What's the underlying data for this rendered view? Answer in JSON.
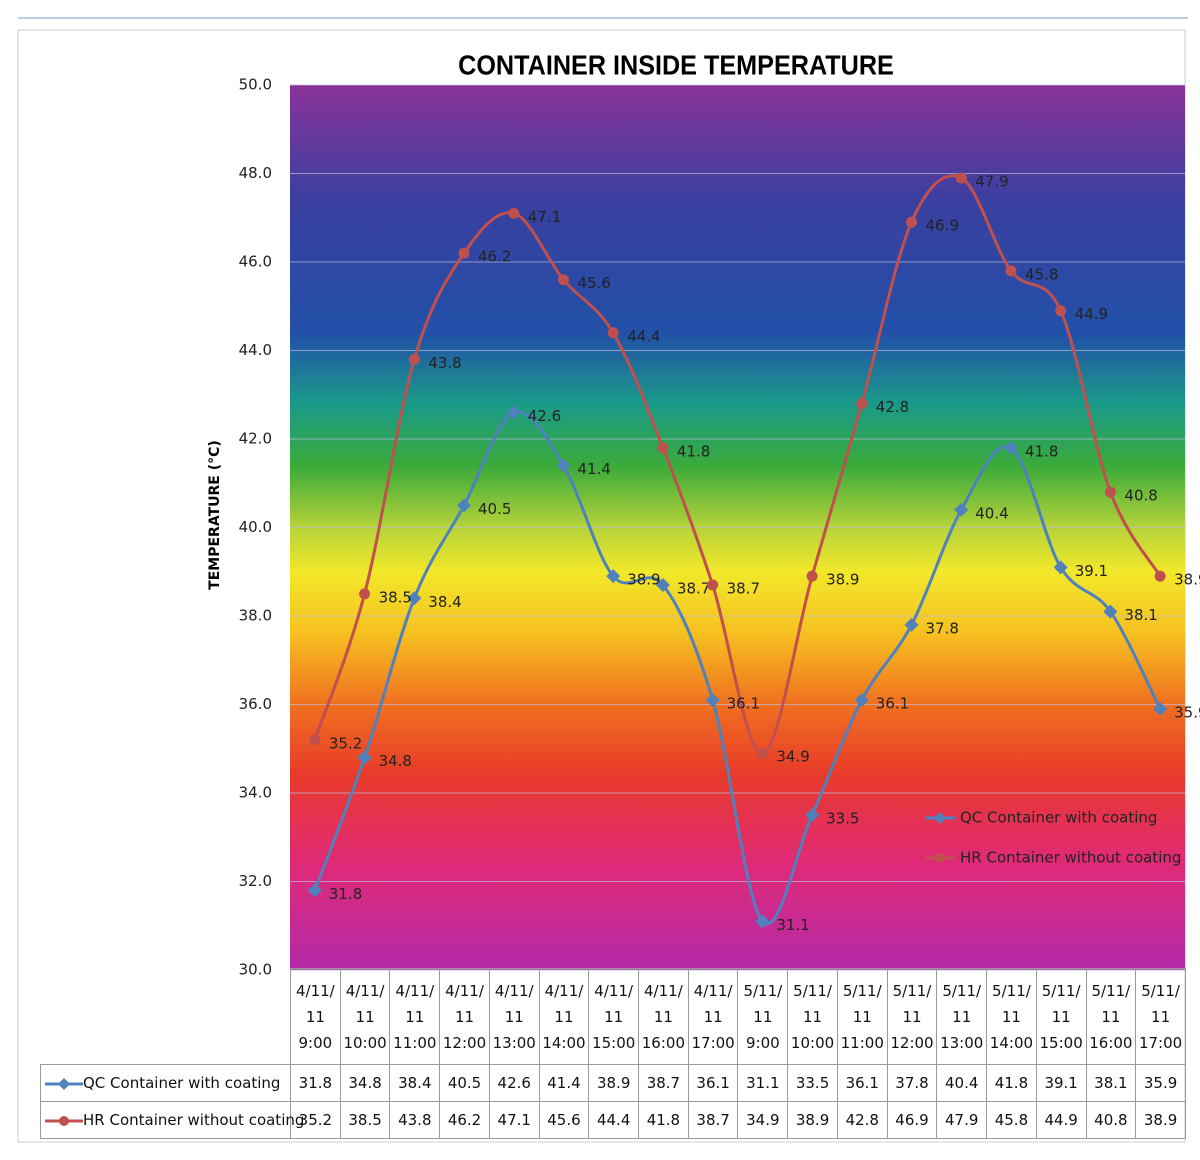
{
  "chart_data": {
    "type": "line",
    "title": "CONTAINER INSIDE TEMPERATURE",
    "y_label": "TEMPERATURE (°C)",
    "categories": [
      "4/11/\n11\n9:00",
      "4/11/\n11\n10:00",
      "4/11/\n11\n11:00",
      "4/11/\n11\n12:00",
      "4/11/\n11\n13:00",
      "4/11/\n11\n14:00",
      "4/11/\n11\n15:00",
      "4/11/\n11\n16:00",
      "4/11/\n11\n17:00",
      "5/11/\n11\n9:00",
      "5/11/\n11\n10:00",
      "5/11/\n11\n11:00",
      "5/11/\n11\n12:00",
      "5/11/\n11\n13:00",
      "5/11/\n11\n14:00",
      "5/11/\n11\n15:00",
      "5/11/\n11\n16:00",
      "5/11/\n11\n17:00"
    ],
    "series": [
      {
        "name": "QC Container with coating",
        "color": "#4f81bd",
        "marker": "diamond",
        "values": [
          31.8,
          34.8,
          38.4,
          40.5,
          42.6,
          41.4,
          38.9,
          38.7,
          36.1,
          31.1,
          33.5,
          36.1,
          37.8,
          40.4,
          41.8,
          39.1,
          38.1,
          35.9
        ]
      },
      {
        "name": "HR Container without coating",
        "color": "#c0504d",
        "marker": "circle",
        "values": [
          35.2,
          38.5,
          43.8,
          46.2,
          47.1,
          45.6,
          44.4,
          41.8,
          38.7,
          34.9,
          38.9,
          42.8,
          46.9,
          47.9,
          45.8,
          44.9,
          40.8,
          38.9
        ]
      }
    ],
    "ylim": [
      30,
      50
    ],
    "yticks": [
      {
        "value": 30,
        "label": "30.0"
      },
      {
        "value": 32,
        "label": "32.0"
      },
      {
        "value": 34,
        "label": "34.0"
      },
      {
        "value": 36,
        "label": "36.0"
      },
      {
        "value": 38,
        "label": "38.0"
      },
      {
        "value": 40,
        "label": "40.0"
      },
      {
        "value": 42,
        "label": "42.0"
      },
      {
        "value": 44,
        "label": "44.0"
      },
      {
        "value": 46,
        "label": "46.0"
      },
      {
        "value": 48,
        "label": "48.0"
      },
      {
        "value": 50,
        "label": "50.0"
      }
    ],
    "grid": true,
    "smooth": true,
    "legend": "lower right",
    "data_table": true
  }
}
